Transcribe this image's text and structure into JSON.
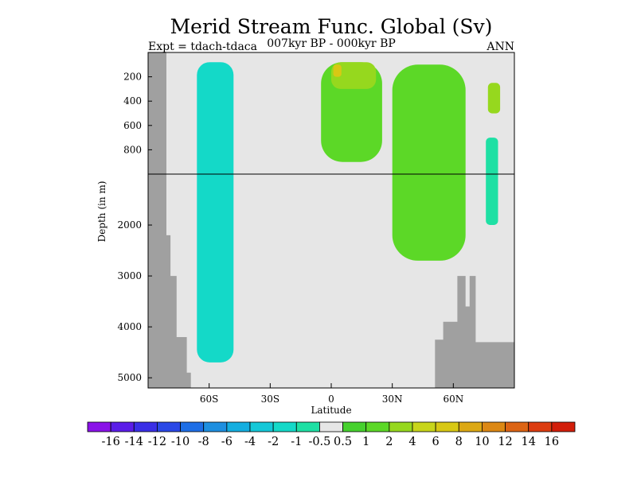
{
  "chart_data": {
    "type": "heatmap",
    "title": "Merid Stream Func. Global (Sv)",
    "subtitle_left": "Expt = tdach-tdaca",
    "subtitle_center": "007kyr BP - 000kyr BP",
    "subtitle_right": "ANN",
    "xlabel": "Latitude",
    "ylabel": "Depth (in m)",
    "xlim": [
      -90,
      90
    ],
    "x_ticks": [
      {
        "value": -60,
        "label": "60S"
      },
      {
        "value": -30,
        "label": "30S"
      },
      {
        "value": 0,
        "label": "0"
      },
      {
        "value": 30,
        "label": "30N"
      },
      {
        "value": 60,
        "label": "60N"
      }
    ],
    "y_axis_upper": {
      "range": [
        0,
        1000
      ],
      "ticks": [
        200,
        400,
        600,
        800
      ],
      "tick_labels": [
        "200",
        "400",
        "600",
        "800"
      ]
    },
    "y_axis_lower": {
      "range": [
        1000,
        5200
      ],
      "ticks": [
        2000,
        3000,
        4000,
        5000
      ],
      "tick_labels": [
        "2000",
        "3000",
        "4000",
        "5000"
      ]
    },
    "colorbar": {
      "levels": [
        "-16",
        "-14",
        "-12",
        "-10",
        "-8",
        "-6",
        "-4",
        "-2",
        "-1",
        "-0.5",
        "0.5",
        "1",
        "2",
        "4",
        "6",
        "8",
        "10",
        "12",
        "14",
        "16"
      ],
      "colors": [
        "#8a12e8",
        "#5b1de8",
        "#3a2fe6",
        "#2a48e6",
        "#1e6ee6",
        "#1e8fe0",
        "#14aee0",
        "#14c8d8",
        "#14d9c8",
        "#1ee0a4",
        "#e6e6e6",
        "#46d12e",
        "#5cd827",
        "#96d81e",
        "#c8d51a",
        "#d8c814",
        "#dca814",
        "#dc8814",
        "#dc6414",
        "#dc3c10",
        "#d21e0a"
      ]
    },
    "land_color": "#a0a0a0",
    "background_color": "#e6e6e6",
    "regions": [
      {
        "name": "southern-cell",
        "value": -1.5,
        "lat": [
          -66,
          -48
        ],
        "depth": [
          80,
          4700
        ]
      },
      {
        "name": "southern-cell-core",
        "value": -2,
        "lat": [
          -63,
          -60
        ],
        "depth": [
          100,
          4400
        ]
      },
      {
        "name": "tropical-upper-cell",
        "value": 1.5,
        "lat": [
          -5,
          25
        ],
        "depth": [
          80,
          900
        ]
      },
      {
        "name": "tropical-upper-core",
        "value": 3,
        "lat": [
          0,
          22
        ],
        "depth": [
          80,
          300
        ]
      },
      {
        "name": "tropical-max-core",
        "value": 7,
        "lat": [
          1,
          5
        ],
        "depth": [
          100,
          200
        ]
      },
      {
        "name": "northern-cell",
        "value": 1.5,
        "lat": [
          30,
          66
        ],
        "depth": [
          100,
          2700
        ]
      },
      {
        "name": "northern-upper-core",
        "value": 3,
        "lat": [
          77,
          83
        ],
        "depth": [
          250,
          500
        ]
      },
      {
        "name": "arctic-negative",
        "value": -1,
        "lat": [
          76,
          82
        ],
        "depth": [
          700,
          2000
        ]
      }
    ]
  }
}
